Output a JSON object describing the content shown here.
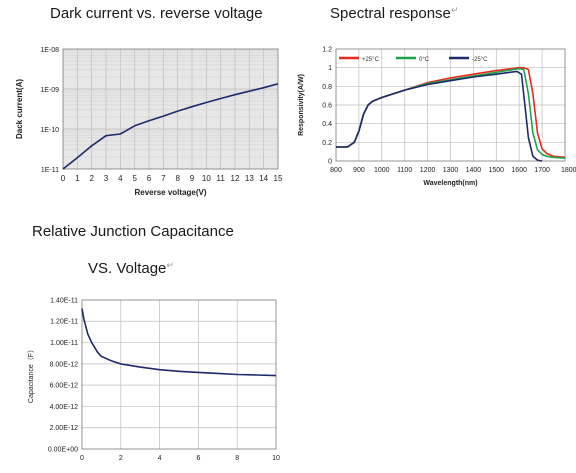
{
  "headings": {
    "dark": "Dark current vs. reverse voltage",
    "spectral": "Spectral response",
    "spectral_mark": "↵",
    "capacitance_line1": "Relative Junction Capacitance",
    "capacitance_line2": "VS. Voltage",
    "capacitance_mark": "↵"
  },
  "colors": {
    "navy": "#1f2a6b",
    "red": "#e8291c",
    "green": "#1fa34a",
    "grid": "#bdbdbd",
    "plot_bg": "#e7e7e7"
  },
  "chart_data": [
    {
      "id": "dark-current",
      "type": "line",
      "xlabel": "Reverse voltage(V)",
      "ylabel": "Dack current(A)",
      "xlim": [
        0,
        15
      ],
      "ylim_log10": [
        -11,
        -8
      ],
      "y_scale": "log",
      "x_ticks": [
        "0",
        "1",
        "2",
        "3",
        "4",
        "5",
        "6",
        "7",
        "8",
        "9",
        "10",
        "11",
        "12",
        "13",
        "14",
        "15"
      ],
      "y_ticks": [
        "1E-08",
        "1E-09",
        "1E-10",
        "1E-11"
      ],
      "grid": true,
      "series": [
        {
          "color": "#1f2a6b",
          "x": [
            0,
            1,
            2,
            3,
            4,
            5,
            6,
            7,
            8,
            9,
            10,
            11,
            12,
            13,
            14,
            15
          ],
          "y": [
            1e-11,
            1.9e-11,
            3.8e-11,
            6.8e-11,
            7.5e-11,
            1.2e-10,
            1.6e-10,
            2.1e-10,
            2.8e-10,
            3.6e-10,
            4.6e-10,
            5.8e-10,
            7.2e-10,
            8.8e-10,
            1.08e-09,
            1.35e-09
          ]
        }
      ]
    },
    {
      "id": "spectral-response",
      "type": "line",
      "xlabel": "Wavelength(nm)",
      "ylabel": "Responsivity(A/W)",
      "xlim": [
        800,
        1800
      ],
      "ylim": [
        0,
        1.2
      ],
      "x_ticks": [
        "800",
        "900",
        "1000",
        "1100",
        "1200",
        "1300",
        "1400",
        "1500",
        "1600",
        "1700",
        "1800"
      ],
      "y_ticks": [
        "0",
        "0.2",
        "0.4",
        "0.6",
        "0.8",
        "1",
        "1.2"
      ],
      "grid": true,
      "legend_position": "top",
      "series": [
        {
          "name": "+25°C",
          "color": "#e8291c",
          "x": [
            800,
            850,
            880,
            900,
            920,
            940,
            960,
            1000,
            1100,
            1200,
            1300,
            1400,
            1500,
            1600,
            1620,
            1640,
            1660,
            1680,
            1700,
            1720,
            1750,
            1800
          ],
          "y": [
            0.15,
            0.15,
            0.2,
            0.32,
            0.5,
            0.6,
            0.64,
            0.68,
            0.76,
            0.84,
            0.89,
            0.93,
            0.97,
            1.0,
            1.0,
            0.98,
            0.72,
            0.3,
            0.13,
            0.08,
            0.05,
            0.04
          ]
        },
        {
          "name": "0°C",
          "color": "#1fa34a",
          "x": [
            800,
            850,
            880,
            900,
            920,
            940,
            960,
            1000,
            1100,
            1200,
            1300,
            1400,
            1500,
            1600,
            1620,
            1640,
            1660,
            1680,
            1700,
            1720,
            1750,
            1800
          ],
          "y": [
            0.15,
            0.15,
            0.2,
            0.32,
            0.5,
            0.6,
            0.64,
            0.68,
            0.76,
            0.83,
            0.87,
            0.91,
            0.95,
            0.99,
            0.98,
            0.72,
            0.3,
            0.12,
            0.07,
            0.05,
            0.04,
            0.03
          ]
        },
        {
          "name": "-25°C",
          "color": "#1f2a6b",
          "x": [
            800,
            850,
            880,
            900,
            920,
            940,
            960,
            1000,
            1100,
            1200,
            1300,
            1400,
            1500,
            1590,
            1610,
            1625,
            1640,
            1660,
            1680,
            1700
          ],
          "y": [
            0.15,
            0.15,
            0.2,
            0.32,
            0.5,
            0.6,
            0.64,
            0.68,
            0.76,
            0.82,
            0.86,
            0.9,
            0.93,
            0.96,
            0.93,
            0.6,
            0.25,
            0.05,
            0.01,
            0.0
          ]
        }
      ]
    },
    {
      "id": "capacitance",
      "type": "line",
      "xlabel": "",
      "ylabel": "Capacitance（F）",
      "xlim": [
        0,
        10
      ],
      "ylim": [
        0,
        1.4e-11
      ],
      "x_ticks": [
        "0",
        "2",
        "4",
        "6",
        "8",
        "10"
      ],
      "y_ticks": [
        "0.00E+00",
        "2.00E-12",
        "4.00E-12",
        "6.00E-12",
        "8.00E-12",
        "1.00E-11",
        "1.20E-11",
        "1.40E-11"
      ],
      "grid": true,
      "series": [
        {
          "color": "#1f2a6b",
          "x": [
            0,
            0.1,
            0.3,
            0.5,
            0.8,
            1,
            1.5,
            2,
            3,
            4,
            5,
            6,
            7,
            8,
            9,
            10
          ],
          "y": [
            1.32e-11,
            1.22e-11,
            1.08e-11,
            1e-11,
            9.1e-12,
            8.7e-12,
            8.3e-12,
            8e-12,
            7.7e-12,
            7.45e-12,
            7.3e-12,
            7.2e-12,
            7.1e-12,
            7e-12,
            6.95e-12,
            6.9e-12
          ]
        }
      ]
    }
  ]
}
